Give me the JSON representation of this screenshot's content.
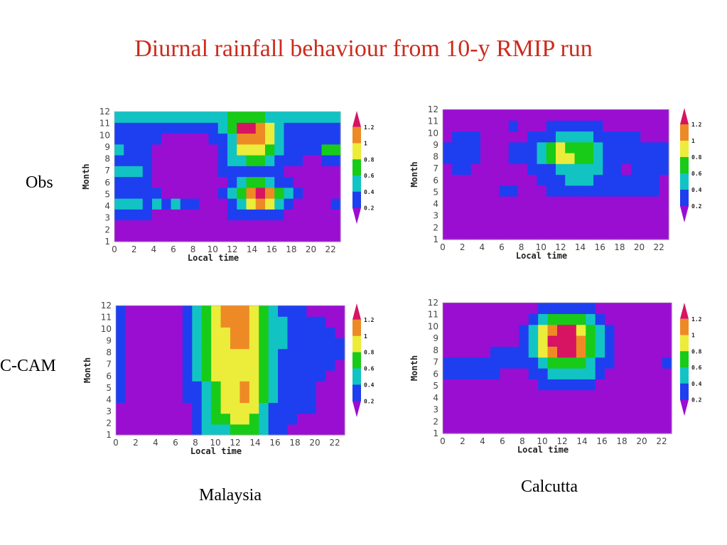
{
  "title": "Diurnal rainfall behaviour from 10-y RMIP run",
  "row_labels": [
    "Obs",
    "C-CAM"
  ],
  "column_labels": [
    "Malaysia",
    "Calcutta"
  ],
  "colors": {
    "title": "#cc2b1d",
    "levels": [
      "#9a0ed1",
      "#1e3ff0",
      "#12c3c3",
      "#18cb18",
      "#ecec3a",
      "#ee8a25",
      "#d61462"
    ]
  },
  "chart_data": [
    {
      "type": "heatmap",
      "panel": "Obs / Malaysia",
      "xlabel": "Local time",
      "ylabel": "Month",
      "xticks": [
        "0",
        "2",
        "4",
        "6",
        "8",
        "10",
        "12",
        "14",
        "16",
        "18",
        "20",
        "22"
      ],
      "yticks": [
        "1",
        "2",
        "3",
        "4",
        "5",
        "6",
        "7",
        "8",
        "9",
        "10",
        "11",
        "12"
      ],
      "xlim": [
        0,
        23
      ],
      "ylim": [
        1,
        12
      ],
      "colorbar_ticks": [
        "0.2",
        "0.4",
        "0.6",
        "0.8",
        "1",
        "1.2"
      ],
      "cells": [
        [
          0,
          0,
          0,
          0,
          0,
          0,
          0,
          0,
          0,
          0,
          0,
          0,
          0,
          0,
          0,
          0,
          0,
          0,
          0,
          0,
          0,
          0,
          0,
          0
        ],
        [
          0,
          0,
          0,
          0,
          0,
          0,
          0,
          0,
          0,
          0,
          0,
          0,
          0,
          0,
          0,
          0,
          0,
          0,
          0,
          0,
          0,
          0,
          0,
          0
        ],
        [
          1,
          1,
          1,
          1,
          0,
          0,
          0,
          0,
          0,
          0,
          0,
          0,
          1,
          1,
          1,
          1,
          1,
          1,
          0,
          0,
          0,
          0,
          0,
          0
        ],
        [
          2,
          2,
          2,
          1,
          2,
          1,
          2,
          1,
          1,
          0,
          0,
          0,
          1,
          2,
          4,
          5,
          4,
          2,
          1,
          0,
          0,
          0,
          0,
          1
        ],
        [
          1,
          1,
          1,
          1,
          1,
          0,
          0,
          0,
          0,
          0,
          0,
          1,
          2,
          3,
          5,
          6,
          5,
          3,
          2,
          1,
          0,
          0,
          0,
          0
        ],
        [
          1,
          1,
          1,
          1,
          0,
          0,
          0,
          0,
          0,
          0,
          0,
          0,
          1,
          2,
          3,
          3,
          2,
          1,
          1,
          0,
          0,
          0,
          0,
          0
        ],
        [
          2,
          2,
          2,
          1,
          0,
          0,
          0,
          0,
          0,
          0,
          0,
          1,
          1,
          1,
          1,
          1,
          1,
          1,
          0,
          0,
          0,
          0,
          0,
          0
        ],
        [
          1,
          1,
          1,
          1,
          0,
          0,
          0,
          0,
          0,
          0,
          0,
          1,
          2,
          2,
          3,
          3,
          2,
          1,
          1,
          1,
          0,
          0,
          1,
          1
        ],
        [
          2,
          1,
          1,
          1,
          0,
          0,
          0,
          0,
          0,
          0,
          0,
          1,
          2,
          4,
          4,
          4,
          3,
          2,
          1,
          1,
          1,
          1,
          3,
          3
        ],
        [
          1,
          1,
          1,
          1,
          1,
          0,
          0,
          0,
          0,
          0,
          1,
          1,
          2,
          5,
          5,
          5,
          4,
          2,
          1,
          1,
          1,
          1,
          1,
          1
        ],
        [
          1,
          1,
          1,
          1,
          1,
          1,
          1,
          1,
          1,
          1,
          1,
          2,
          3,
          6,
          6,
          5,
          4,
          2,
          1,
          1,
          1,
          1,
          1,
          1
        ],
        [
          2,
          2,
          2,
          2,
          2,
          2,
          2,
          2,
          2,
          2,
          2,
          2,
          3,
          3,
          3,
          3,
          2,
          2,
          2,
          2,
          2,
          2,
          2,
          2
        ]
      ]
    },
    {
      "type": "heatmap",
      "panel": "Obs / Calcutta",
      "xlabel": "Local time",
      "ylabel": "Month",
      "xticks": [
        "0",
        "2",
        "4",
        "6",
        "8",
        "10",
        "12",
        "14",
        "16",
        "18",
        "20",
        "22"
      ],
      "yticks": [
        "1",
        "2",
        "3",
        "4",
        "5",
        "6",
        "7",
        "8",
        "9",
        "10",
        "11",
        "12"
      ],
      "xlim": [
        0,
        23
      ],
      "ylim": [
        1,
        12
      ],
      "colorbar_ticks": [
        "0.2",
        "0.4",
        "0.6",
        "0.8",
        "1",
        "1.2"
      ],
      "cells": [
        [
          0,
          0,
          0,
          0,
          0,
          0,
          0,
          0,
          0,
          0,
          0,
          0,
          0,
          0,
          0,
          0,
          0,
          0,
          0,
          0,
          0,
          0,
          0,
          0
        ],
        [
          0,
          0,
          0,
          0,
          0,
          0,
          0,
          0,
          0,
          0,
          0,
          0,
          0,
          0,
          0,
          0,
          0,
          0,
          0,
          0,
          0,
          0,
          0,
          0
        ],
        [
          0,
          0,
          0,
          0,
          0,
          0,
          0,
          0,
          0,
          0,
          0,
          0,
          0,
          0,
          0,
          0,
          0,
          0,
          0,
          0,
          0,
          0,
          0,
          0
        ],
        [
          0,
          0,
          0,
          0,
          0,
          0,
          0,
          0,
          0,
          0,
          0,
          0,
          0,
          0,
          0,
          0,
          0,
          0,
          0,
          0,
          0,
          0,
          0,
          0
        ],
        [
          0,
          0,
          0,
          0,
          0,
          0,
          1,
          1,
          0,
          0,
          0,
          1,
          1,
          1,
          1,
          1,
          1,
          1,
          1,
          1,
          1,
          1,
          1,
          0
        ],
        [
          0,
          0,
          0,
          0,
          0,
          0,
          0,
          0,
          0,
          0,
          1,
          1,
          1,
          2,
          2,
          2,
          1,
          1,
          1,
          1,
          1,
          1,
          1,
          0
        ],
        [
          0,
          1,
          1,
          0,
          0,
          0,
          0,
          0,
          0,
          1,
          1,
          1,
          2,
          2,
          2,
          2,
          2,
          1,
          1,
          0,
          1,
          1,
          1,
          1
        ],
        [
          1,
          1,
          1,
          1,
          0,
          0,
          0,
          1,
          1,
          1,
          2,
          3,
          4,
          4,
          3,
          3,
          2,
          1,
          1,
          1,
          1,
          1,
          1,
          1
        ],
        [
          1,
          1,
          1,
          1,
          0,
          0,
          0,
          1,
          1,
          1,
          2,
          3,
          4,
          3,
          3,
          3,
          2,
          1,
          1,
          1,
          1,
          1,
          1,
          1
        ],
        [
          0,
          1,
          1,
          1,
          0,
          0,
          0,
          0,
          0,
          1,
          1,
          1,
          2,
          2,
          2,
          2,
          1,
          1,
          1,
          1,
          1,
          0,
          0,
          0
        ],
        [
          0,
          0,
          0,
          0,
          0,
          0,
          0,
          1,
          0,
          0,
          0,
          1,
          1,
          1,
          1,
          1,
          1,
          0,
          0,
          0,
          0,
          0,
          0,
          0
        ],
        [
          0,
          0,
          0,
          0,
          0,
          0,
          0,
          0,
          0,
          0,
          0,
          0,
          0,
          0,
          0,
          0,
          0,
          0,
          0,
          0,
          0,
          0,
          0,
          0
        ]
      ]
    },
    {
      "type": "heatmap",
      "panel": "C-CAM / Malaysia",
      "xlabel": "Local time",
      "ylabel": "Month",
      "xticks": [
        "0",
        "2",
        "4",
        "6",
        "8",
        "10",
        "12",
        "14",
        "16",
        "18",
        "20",
        "22"
      ],
      "yticks": [
        "1",
        "2",
        "3",
        "4",
        "5",
        "6",
        "7",
        "8",
        "9",
        "10",
        "11",
        "12"
      ],
      "xlim": [
        0,
        23
      ],
      "ylim": [
        1,
        12
      ],
      "colorbar_ticks": [
        "0.2",
        "0.4",
        "0.6",
        "0.8",
        "1",
        "1.2"
      ],
      "cells": [
        [
          0,
          0,
          0,
          0,
          0,
          0,
          0,
          0,
          1,
          2,
          2,
          2,
          3,
          3,
          3,
          2,
          1,
          1,
          0,
          0,
          0,
          0,
          0,
          0
        ],
        [
          0,
          0,
          0,
          0,
          0,
          0,
          0,
          0,
          1,
          2,
          3,
          3,
          4,
          4,
          3,
          2,
          1,
          1,
          1,
          0,
          0,
          0,
          0,
          0
        ],
        [
          0,
          0,
          0,
          0,
          0,
          0,
          0,
          0,
          1,
          2,
          3,
          4,
          4,
          4,
          4,
          2,
          1,
          1,
          1,
          1,
          1,
          0,
          0,
          0
        ],
        [
          1,
          0,
          0,
          0,
          0,
          0,
          0,
          1,
          1,
          2,
          3,
          4,
          4,
          5,
          4,
          3,
          2,
          1,
          1,
          1,
          1,
          0,
          0,
          0
        ],
        [
          1,
          0,
          0,
          0,
          0,
          0,
          0,
          1,
          1,
          2,
          3,
          4,
          4,
          5,
          4,
          3,
          2,
          1,
          1,
          1,
          1,
          0,
          0,
          0
        ],
        [
          1,
          0,
          0,
          0,
          0,
          0,
          0,
          1,
          2,
          3,
          4,
          4,
          4,
          4,
          4,
          3,
          2,
          1,
          1,
          1,
          1,
          1,
          0,
          0
        ],
        [
          1,
          0,
          0,
          0,
          0,
          0,
          0,
          1,
          2,
          3,
          4,
          4,
          4,
          4,
          4,
          3,
          2,
          1,
          1,
          1,
          1,
          1,
          1,
          0
        ],
        [
          1,
          0,
          0,
          0,
          0,
          0,
          0,
          1,
          2,
          3,
          4,
          4,
          4,
          4,
          4,
          3,
          2,
          1,
          1,
          1,
          1,
          1,
          1,
          1
        ],
        [
          1,
          0,
          0,
          0,
          0,
          0,
          0,
          1,
          2,
          3,
          4,
          4,
          5,
          5,
          4,
          3,
          2,
          2,
          1,
          1,
          1,
          1,
          1,
          1
        ],
        [
          1,
          0,
          0,
          0,
          0,
          0,
          0,
          1,
          2,
          3,
          4,
          4,
          5,
          5,
          4,
          3,
          2,
          2,
          1,
          1,
          1,
          1,
          1,
          0
        ],
        [
          1,
          0,
          0,
          0,
          0,
          0,
          0,
          1,
          2,
          3,
          4,
          5,
          5,
          5,
          4,
          3,
          2,
          2,
          1,
          1,
          1,
          1,
          0,
          0
        ],
        [
          1,
          0,
          0,
          0,
          0,
          0,
          0,
          1,
          2,
          3,
          4,
          5,
          5,
          5,
          4,
          3,
          2,
          1,
          1,
          1,
          0,
          0,
          0,
          0
        ]
      ]
    },
    {
      "type": "heatmap",
      "panel": "C-CAM / Calcutta",
      "xlabel": "Local time",
      "ylabel": "Month",
      "xticks": [
        "0",
        "2",
        "4",
        "6",
        "8",
        "10",
        "12",
        "14",
        "16",
        "18",
        "20",
        "22"
      ],
      "yticks": [
        "1",
        "2",
        "3",
        "4",
        "5",
        "6",
        "7",
        "8",
        "9",
        "10",
        "11",
        "12"
      ],
      "xlim": [
        0,
        23
      ],
      "ylim": [
        1,
        12
      ],
      "colorbar_ticks": [
        "0.2",
        "0.4",
        "0.6",
        "0.8",
        "1",
        "1.2"
      ],
      "cells": [
        [
          0,
          0,
          0,
          0,
          0,
          0,
          0,
          0,
          0,
          0,
          0,
          0,
          0,
          0,
          0,
          0,
          0,
          0,
          0,
          0,
          0,
          0,
          0,
          0
        ],
        [
          0,
          0,
          0,
          0,
          0,
          0,
          0,
          0,
          0,
          0,
          0,
          0,
          0,
          0,
          0,
          0,
          0,
          0,
          0,
          0,
          0,
          0,
          0,
          0
        ],
        [
          0,
          0,
          0,
          0,
          0,
          0,
          0,
          0,
          0,
          0,
          0,
          0,
          0,
          0,
          0,
          0,
          0,
          0,
          0,
          0,
          0,
          0,
          0,
          0
        ],
        [
          0,
          0,
          0,
          0,
          0,
          0,
          0,
          0,
          0,
          0,
          0,
          0,
          0,
          0,
          0,
          0,
          0,
          0,
          0,
          0,
          0,
          0,
          0,
          0
        ],
        [
          0,
          0,
          0,
          0,
          0,
          0,
          0,
          0,
          0,
          0,
          1,
          1,
          1,
          1,
          1,
          1,
          0,
          0,
          0,
          0,
          0,
          0,
          0,
          0
        ],
        [
          1,
          1,
          1,
          1,
          1,
          1,
          0,
          0,
          0,
          1,
          1,
          2,
          2,
          2,
          2,
          2,
          1,
          0,
          0,
          0,
          0,
          0,
          0,
          0
        ],
        [
          1,
          1,
          1,
          1,
          1,
          1,
          1,
          1,
          1,
          1,
          2,
          3,
          3,
          3,
          3,
          2,
          1,
          1,
          0,
          0,
          0,
          0,
          0,
          1
        ],
        [
          0,
          0,
          0,
          0,
          0,
          1,
          1,
          1,
          1,
          2,
          4,
          5,
          6,
          6,
          5,
          3,
          2,
          1,
          0,
          0,
          0,
          0,
          0,
          0
        ],
        [
          0,
          0,
          0,
          0,
          0,
          0,
          0,
          0,
          1,
          2,
          4,
          6,
          6,
          6,
          5,
          3,
          2,
          1,
          0,
          0,
          0,
          0,
          0,
          0
        ],
        [
          0,
          0,
          0,
          0,
          0,
          0,
          0,
          0,
          1,
          2,
          4,
          5,
          6,
          6,
          4,
          3,
          2,
          1,
          0,
          0,
          0,
          0,
          0,
          0
        ],
        [
          0,
          0,
          0,
          0,
          0,
          0,
          0,
          0,
          0,
          1,
          2,
          3,
          3,
          3,
          3,
          2,
          1,
          0,
          0,
          0,
          0,
          0,
          0,
          0
        ],
        [
          0,
          0,
          0,
          0,
          0,
          0,
          0,
          0,
          0,
          0,
          1,
          1,
          1,
          1,
          1,
          1,
          0,
          0,
          0,
          0,
          0,
          0,
          0,
          0
        ]
      ]
    }
  ]
}
